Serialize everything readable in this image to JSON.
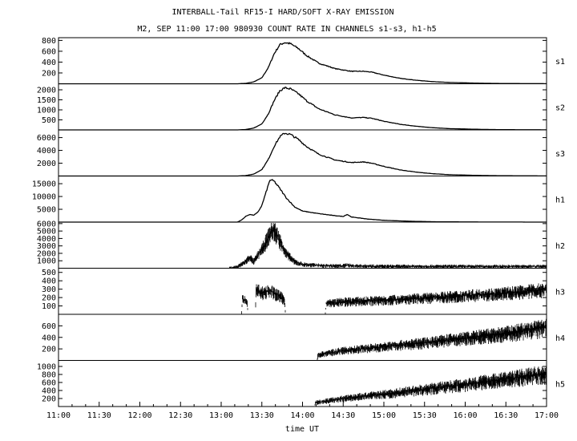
{
  "chart_data": {
    "type": "line",
    "title": "INTERBALL-Tail RF15-I HARD/SOFT X-RAY EMISSION",
    "subtitle": "M2, SEP 11:00 17:00 980930  COUNT RATE IN CHANNELS s1-s3, h1-h5",
    "xlabel": "time UT",
    "x_ticks": [
      "11:00",
      "11:30",
      "12:00",
      "12:30",
      "13:00",
      "13:30",
      "14:00",
      "14:30",
      "15:00",
      "15:30",
      "16:00",
      "16:30",
      "17:00"
    ],
    "xlim_hours": [
      11,
      17
    ],
    "grid": false,
    "panels": [
      {
        "name": "s1",
        "ylim": [
          0,
          850
        ],
        "yticks": [
          200,
          400,
          600,
          800
        ],
        "style": "line",
        "points": [
          [
            11.0,
            0
          ],
          [
            13.2,
            0
          ],
          [
            13.3,
            8
          ],
          [
            13.4,
            35
          ],
          [
            13.5,
            110
          ],
          [
            13.58,
            300
          ],
          [
            13.65,
            550
          ],
          [
            13.72,
            720
          ],
          [
            13.78,
            760
          ],
          [
            13.85,
            740
          ],
          [
            13.95,
            650
          ],
          [
            14.05,
            520
          ],
          [
            14.2,
            380
          ],
          [
            14.4,
            280
          ],
          [
            14.6,
            230
          ],
          [
            14.75,
            230
          ],
          [
            14.85,
            215
          ],
          [
            15.0,
            160
          ],
          [
            15.2,
            100
          ],
          [
            15.4,
            65
          ],
          [
            15.6,
            40
          ],
          [
            15.8,
            25
          ],
          [
            16.2,
            10
          ],
          [
            16.6,
            4
          ],
          [
            17.0,
            2
          ]
        ]
      },
      {
        "name": "s2",
        "ylim": [
          0,
          2300
        ],
        "yticks": [
          500,
          1000,
          1500,
          2000
        ],
        "style": "line",
        "points": [
          [
            11.0,
            0
          ],
          [
            13.2,
            0
          ],
          [
            13.3,
            20
          ],
          [
            13.4,
            90
          ],
          [
            13.5,
            300
          ],
          [
            13.58,
            800
          ],
          [
            13.65,
            1450
          ],
          [
            13.72,
            1950
          ],
          [
            13.78,
            2100
          ],
          [
            13.85,
            2050
          ],
          [
            13.95,
            1800
          ],
          [
            14.05,
            1450
          ],
          [
            14.2,
            1050
          ],
          [
            14.4,
            750
          ],
          [
            14.6,
            600
          ],
          [
            14.75,
            620
          ],
          [
            14.85,
            580
          ],
          [
            15.0,
            430
          ],
          [
            15.2,
            280
          ],
          [
            15.4,
            180
          ],
          [
            15.6,
            110
          ],
          [
            15.8,
            65
          ],
          [
            16.2,
            25
          ],
          [
            16.6,
            10
          ],
          [
            17.0,
            5
          ]
        ]
      },
      {
        "name": "s3",
        "ylim": [
          0,
          7200
        ],
        "yticks": [
          2000,
          4000,
          6000
        ],
        "style": "line",
        "points": [
          [
            11.0,
            0
          ],
          [
            13.2,
            0
          ],
          [
            13.3,
            60
          ],
          [
            13.4,
            300
          ],
          [
            13.5,
            1000
          ],
          [
            13.58,
            2600
          ],
          [
            13.65,
            4600
          ],
          [
            13.72,
            6100
          ],
          [
            13.78,
            6700
          ],
          [
            13.85,
            6500
          ],
          [
            13.95,
            5700
          ],
          [
            14.05,
            4600
          ],
          [
            14.2,
            3400
          ],
          [
            14.4,
            2500
          ],
          [
            14.6,
            2100
          ],
          [
            14.75,
            2200
          ],
          [
            14.85,
            2000
          ],
          [
            15.0,
            1500
          ],
          [
            15.2,
            950
          ],
          [
            15.4,
            600
          ],
          [
            15.6,
            360
          ],
          [
            15.8,
            210
          ],
          [
            16.2,
            80
          ],
          [
            16.6,
            30
          ],
          [
            17.0,
            15
          ]
        ]
      },
      {
        "name": "h1",
        "ylim": [
          0,
          18000
        ],
        "yticks": [
          5000,
          10000,
          15000
        ],
        "style": "line",
        "points": [
          [
            11.0,
            0
          ],
          [
            13.2,
            0
          ],
          [
            13.25,
            800
          ],
          [
            13.3,
            2200
          ],
          [
            13.35,
            3000
          ],
          [
            13.4,
            2700
          ],
          [
            13.45,
            3800
          ],
          [
            13.5,
            6500
          ],
          [
            13.55,
            11500
          ],
          [
            13.6,
            16500
          ],
          [
            13.65,
            16000
          ],
          [
            13.7,
            14000
          ],
          [
            13.8,
            9500
          ],
          [
            13.9,
            6000
          ],
          [
            14.0,
            4300
          ],
          [
            14.2,
            3300
          ],
          [
            14.4,
            2500
          ],
          [
            14.5,
            2200
          ],
          [
            14.55,
            3000
          ],
          [
            14.6,
            2000
          ],
          [
            14.8,
            1200
          ],
          [
            15.0,
            700
          ],
          [
            15.3,
            350
          ],
          [
            15.6,
            150
          ],
          [
            16.0,
            60
          ],
          [
            16.5,
            20
          ],
          [
            17.0,
            10
          ]
        ]
      },
      {
        "name": "h2",
        "ylim": [
          0,
          6200
        ],
        "yticks": [
          1000,
          2000,
          3000,
          4000,
          5000,
          6000
        ],
        "style": "band",
        "points": [
          [
            11.0,
            0
          ],
          [
            13.1,
            0
          ],
          [
            13.2,
            200
          ],
          [
            13.3,
            900
          ],
          [
            13.35,
            1500
          ],
          [
            13.4,
            900
          ],
          [
            13.5,
            2500
          ],
          [
            13.6,
            4700
          ],
          [
            13.65,
            5200
          ],
          [
            13.7,
            4200
          ],
          [
            13.8,
            2000
          ],
          [
            13.9,
            900
          ],
          [
            14.0,
            500
          ],
          [
            14.3,
            300
          ],
          [
            14.5,
            320
          ],
          [
            14.55,
            450
          ],
          [
            14.6,
            300
          ],
          [
            15.0,
            250
          ],
          [
            16.0,
            230
          ],
          [
            17.0,
            230
          ]
        ]
      },
      {
        "name": "h3",
        "ylim": [
          0,
          550
        ],
        "yticks": [
          100,
          200,
          300,
          400,
          500
        ],
        "style": "band",
        "points": [
          [
            11.0,
            0
          ],
          [
            13.25,
            0
          ],
          [
            13.26,
            180
          ],
          [
            13.32,
            150
          ],
          [
            13.33,
            0
          ],
          [
            13.42,
            0
          ],
          [
            13.43,
            300
          ],
          [
            13.5,
            260
          ],
          [
            13.6,
            280
          ],
          [
            13.7,
            230
          ],
          [
            13.78,
            180
          ],
          [
            13.79,
            0
          ],
          [
            14.28,
            0
          ],
          [
            14.29,
            130
          ],
          [
            14.5,
            150
          ],
          [
            15.0,
            170
          ],
          [
            15.5,
            195
          ],
          [
            16.0,
            225
          ],
          [
            16.5,
            255
          ],
          [
            17.0,
            300
          ]
        ]
      },
      {
        "name": "h4",
        "ylim": [
          0,
          800
        ],
        "yticks": [
          200,
          400,
          600
        ],
        "style": "band",
        "points": [
          [
            11.0,
            0
          ],
          [
            14.18,
            0
          ],
          [
            14.19,
            100
          ],
          [
            14.5,
            170
          ],
          [
            15.0,
            240
          ],
          [
            15.5,
            310
          ],
          [
            16.0,
            390
          ],
          [
            16.5,
            470
          ],
          [
            17.0,
            580
          ]
        ]
      },
      {
        "name": "h5",
        "ylim": [
          0,
          1150
        ],
        "yticks": [
          200,
          400,
          600,
          800,
          1000
        ],
        "style": "band",
        "points": [
          [
            11.0,
            0
          ],
          [
            14.15,
            0
          ],
          [
            14.16,
            100
          ],
          [
            14.5,
            200
          ],
          [
            15.0,
            310
          ],
          [
            15.5,
            430
          ],
          [
            16.0,
            560
          ],
          [
            16.5,
            690
          ],
          [
            17.0,
            830
          ]
        ]
      }
    ]
  }
}
